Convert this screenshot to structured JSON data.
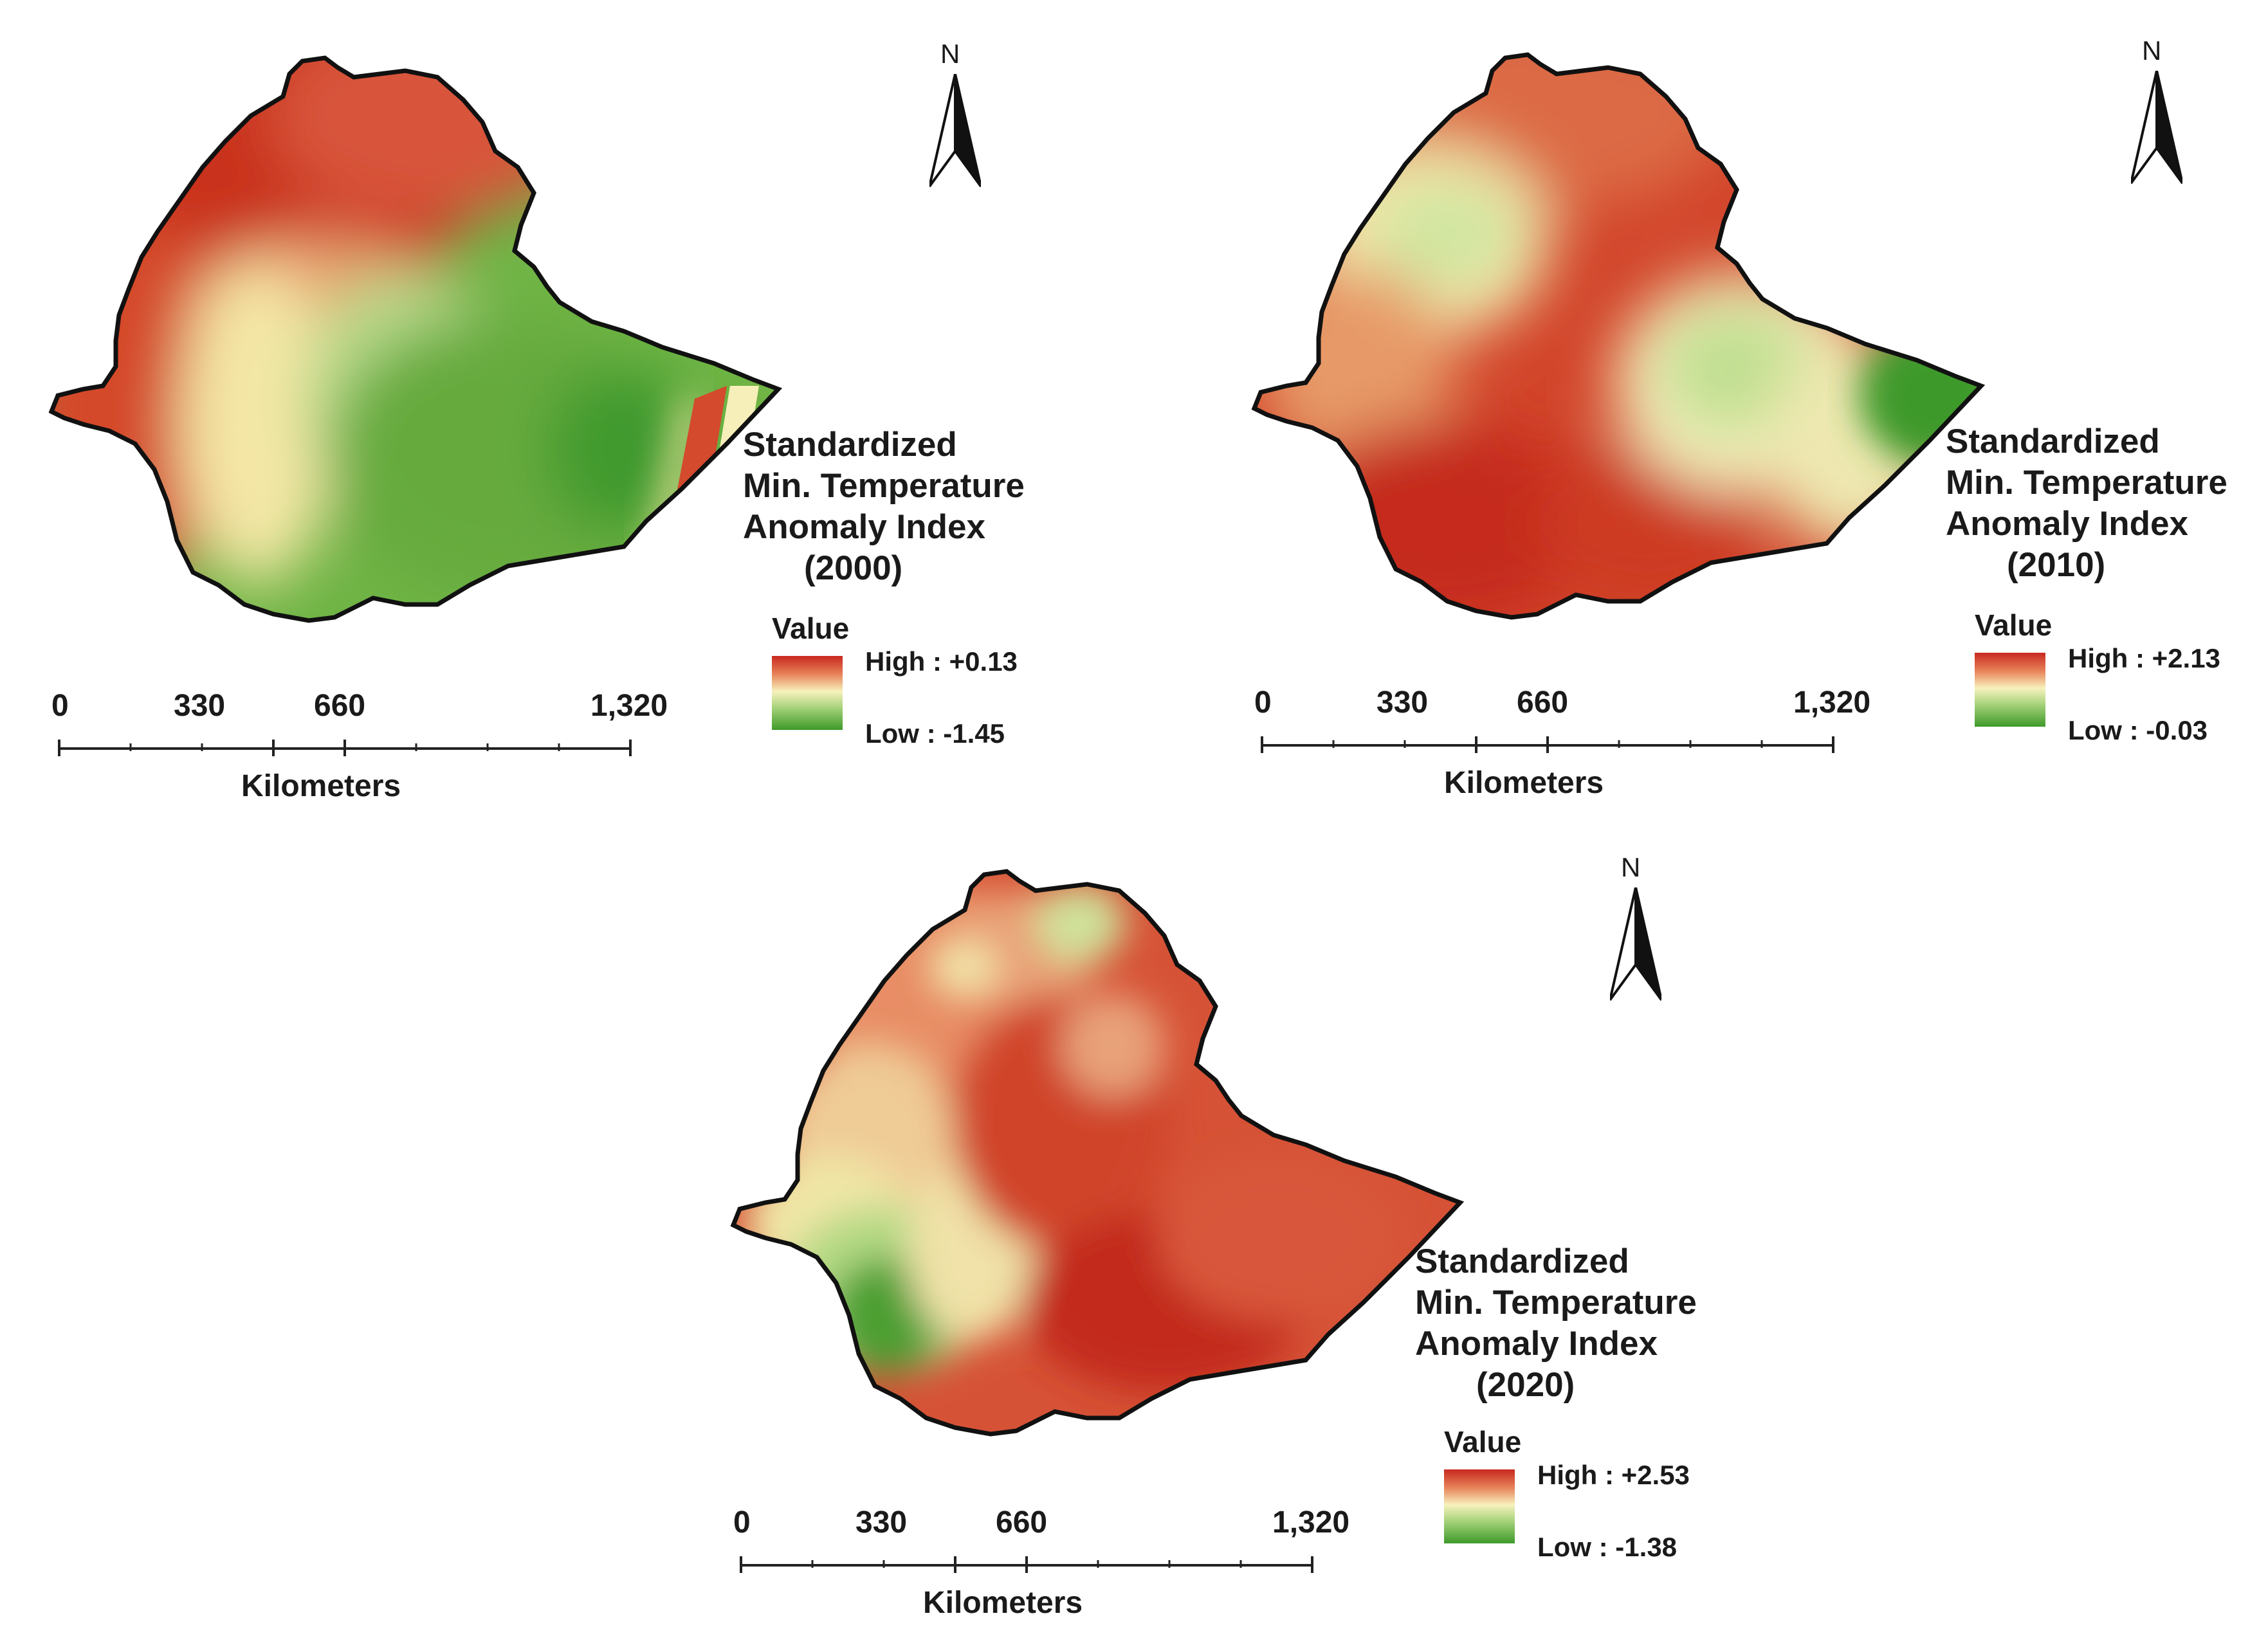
{
  "figure": {
    "maps": [
      {
        "year_label": "(2000)",
        "title_lines": [
          "Standardized",
          "Min. Temperature",
          "Anomaly Index"
        ],
        "value_label": "Value",
        "high_label": "High : +0.13",
        "low_label": "Low : -1.45",
        "high_value": 0.13,
        "low_value": -1.45,
        "scale_ticks": [
          "0",
          "330",
          "660",
          "1,320"
        ],
        "scale_unit": "Kilometers",
        "north_label": "N",
        "pattern": "north-west high (red), south-east low (green), red strip along far-east border"
      },
      {
        "year_label": "(2010)",
        "title_lines": [
          "Standardized",
          "Min. Temperature",
          "Anomaly Index"
        ],
        "value_label": "Value",
        "high_label": "High : +2.13",
        "low_label": "Low : -0.03",
        "high_value": 2.13,
        "low_value": -0.03,
        "scale_ticks": [
          "0",
          "330",
          "660",
          "1,320"
        ],
        "scale_unit": "Kilometers",
        "north_label": "N",
        "pattern": "mostly red, yellow-green patches north-west and east, green tip in far east"
      },
      {
        "year_label": "(2020)",
        "title_lines": [
          "Standardized",
          "Min. Temperature",
          "Anomaly Index"
        ],
        "value_label": "Value",
        "high_label": "High : +2.53",
        "low_label": "Low : -1.38",
        "high_value": 2.53,
        "low_value": -1.38,
        "scale_ticks": [
          "0",
          "330",
          "660",
          "1,320"
        ],
        "scale_unit": "Kilometers",
        "north_label": "N",
        "pattern": "mostly red, green patch in south-west"
      }
    ],
    "colors": {
      "high": "#c8281f",
      "mid": "#f5f0b0",
      "low": "#3e9a2a",
      "outline": "#111111"
    }
  }
}
